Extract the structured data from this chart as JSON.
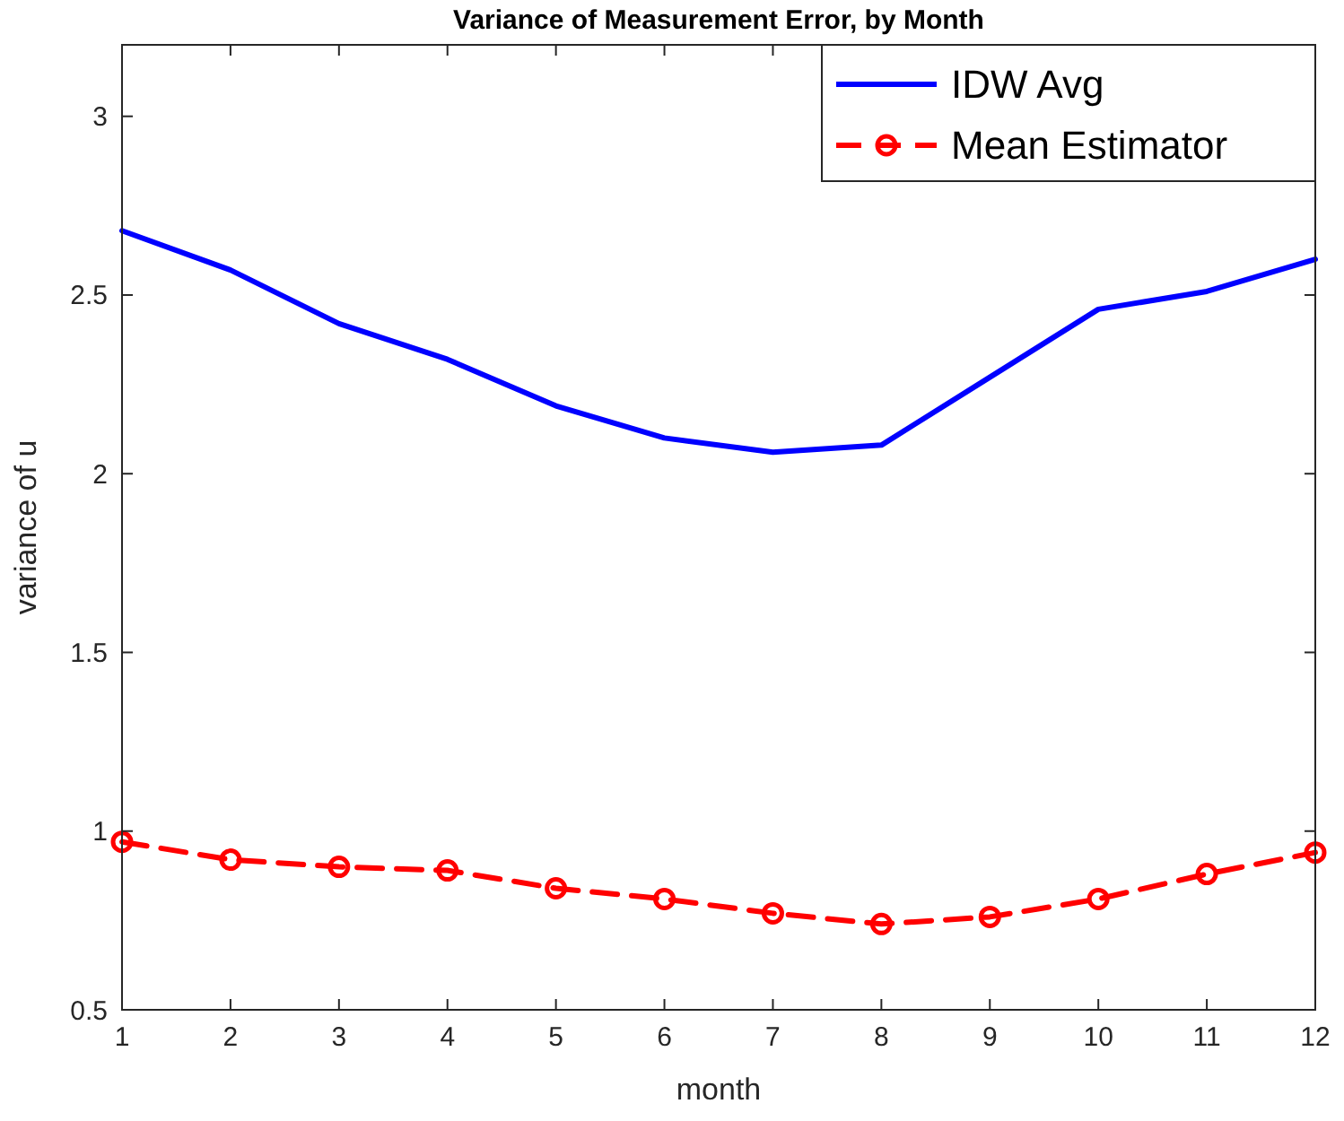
{
  "chart_data": {
    "type": "line",
    "title": "Variance of Measurement Error, by Month",
    "xlabel": "month",
    "ylabel": "variance of u",
    "x": [
      1,
      2,
      3,
      4,
      5,
      6,
      7,
      8,
      9,
      10,
      11,
      12
    ],
    "series": [
      {
        "name": "IDW Avg",
        "color": "#0000ff",
        "values": [
          2.68,
          2.57,
          2.42,
          2.32,
          2.19,
          2.1,
          2.06,
          2.08,
          2.27,
          2.46,
          2.51,
          2.6
        ],
        "marker": "none",
        "line_style": "solid"
      },
      {
        "name": "Mean Estimator",
        "color": "#ff0000",
        "values": [
          0.97,
          0.92,
          0.9,
          0.89,
          0.84,
          0.81,
          0.77,
          0.74,
          0.76,
          0.81,
          0.88,
          0.94
        ],
        "marker": "circle",
        "line_style": "dashed"
      }
    ],
    "xlim": [
      1,
      12
    ],
    "xticks": [
      1,
      2,
      3,
      4,
      5,
      6,
      7,
      8,
      9,
      10,
      11,
      12
    ],
    "ylim": [
      0.5,
      3.2
    ],
    "yticks": [
      0.5,
      1,
      1.5,
      2,
      2.5,
      3
    ],
    "grid": false,
    "legend": "top right"
  }
}
